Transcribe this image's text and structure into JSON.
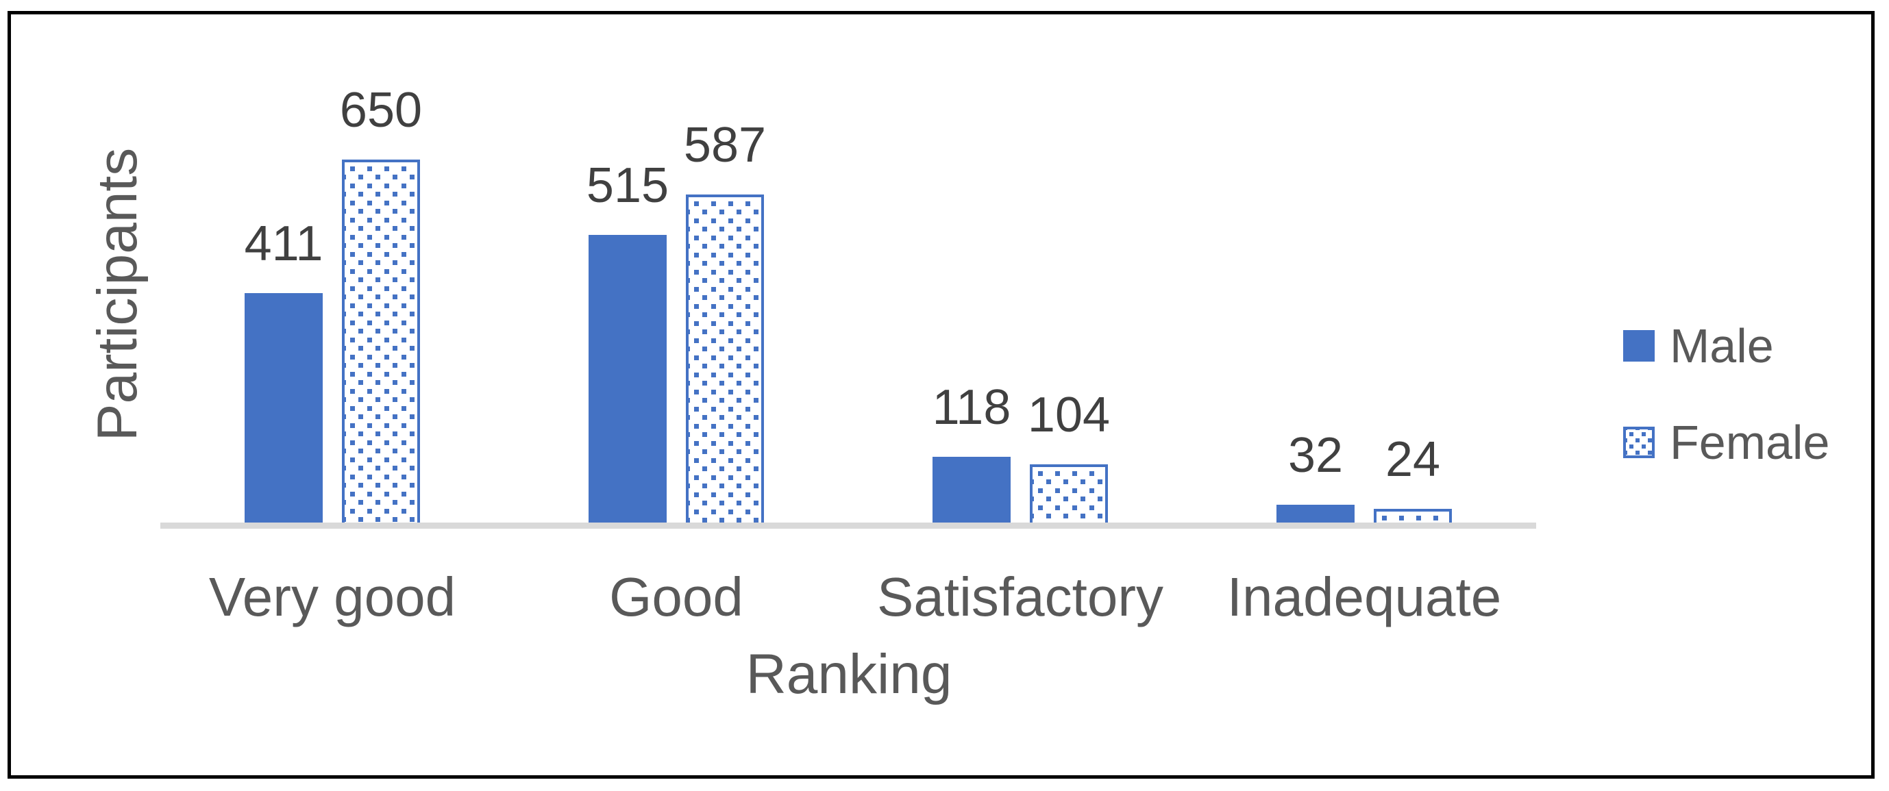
{
  "chart_data": {
    "type": "bar",
    "title": "",
    "categories": [
      "Very good",
      "Good",
      "Satisfactory",
      "Inadequate"
    ],
    "series": [
      {
        "name": "Male",
        "values": [
          411,
          515,
          118,
          32
        ],
        "fill_style": "solid"
      },
      {
        "name": "Female",
        "values": [
          650,
          587,
          104,
          24
        ],
        "fill_style": "dotted-pattern"
      }
    ],
    "xlabel": "Ranking",
    "ylabel": "Participants",
    "value_labels": true,
    "grid": false,
    "y_axis_ticks_visible": false,
    "legend_position": "right"
  },
  "colors": {
    "series_blue": "#4472C4",
    "data_label_text": "#404040",
    "axis_text": "#595959",
    "axis_line": "#D9D9D9",
    "frame_border": "#000000",
    "background": "#FFFFFF"
  }
}
